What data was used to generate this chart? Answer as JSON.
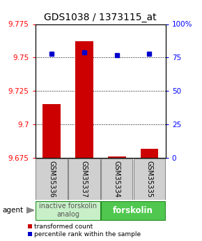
{
  "title": "GDS1038 / 1373115_at",
  "samples": [
    "GSM35336",
    "GSM35337",
    "GSM35334",
    "GSM35335"
  ],
  "red_values": [
    9.715,
    9.762,
    9.676,
    9.682
  ],
  "blue_values": [
    78,
    79,
    77,
    78
  ],
  "ylim_left": [
    9.675,
    9.775
  ],
  "ylim_right": [
    0,
    100
  ],
  "yticks_left": [
    9.675,
    9.7,
    9.725,
    9.75,
    9.775
  ],
  "yticks_right": [
    0,
    25,
    50,
    75,
    100
  ],
  "ytick_labels_right": [
    "0",
    "25",
    "50",
    "75",
    "100%"
  ],
  "hlines": [
    9.75,
    9.725,
    9.7
  ],
  "group1_label": "inactive forskolin\nanalog",
  "group2_label": "forskolin",
  "group1_color": "#c8f0c8",
  "group2_color": "#50c850",
  "legend_red": "transformed count",
  "legend_blue": "percentile rank within the sample",
  "agent_label": "agent",
  "bar_color": "#cc0000",
  "dot_color": "#0000cc",
  "bar_width": 0.55,
  "title_fontsize": 10,
  "tick_fontsize": 7.5,
  "label_fontsize": 7.5,
  "sample_label_fontsize": 7,
  "group_label_fontsize": 7
}
